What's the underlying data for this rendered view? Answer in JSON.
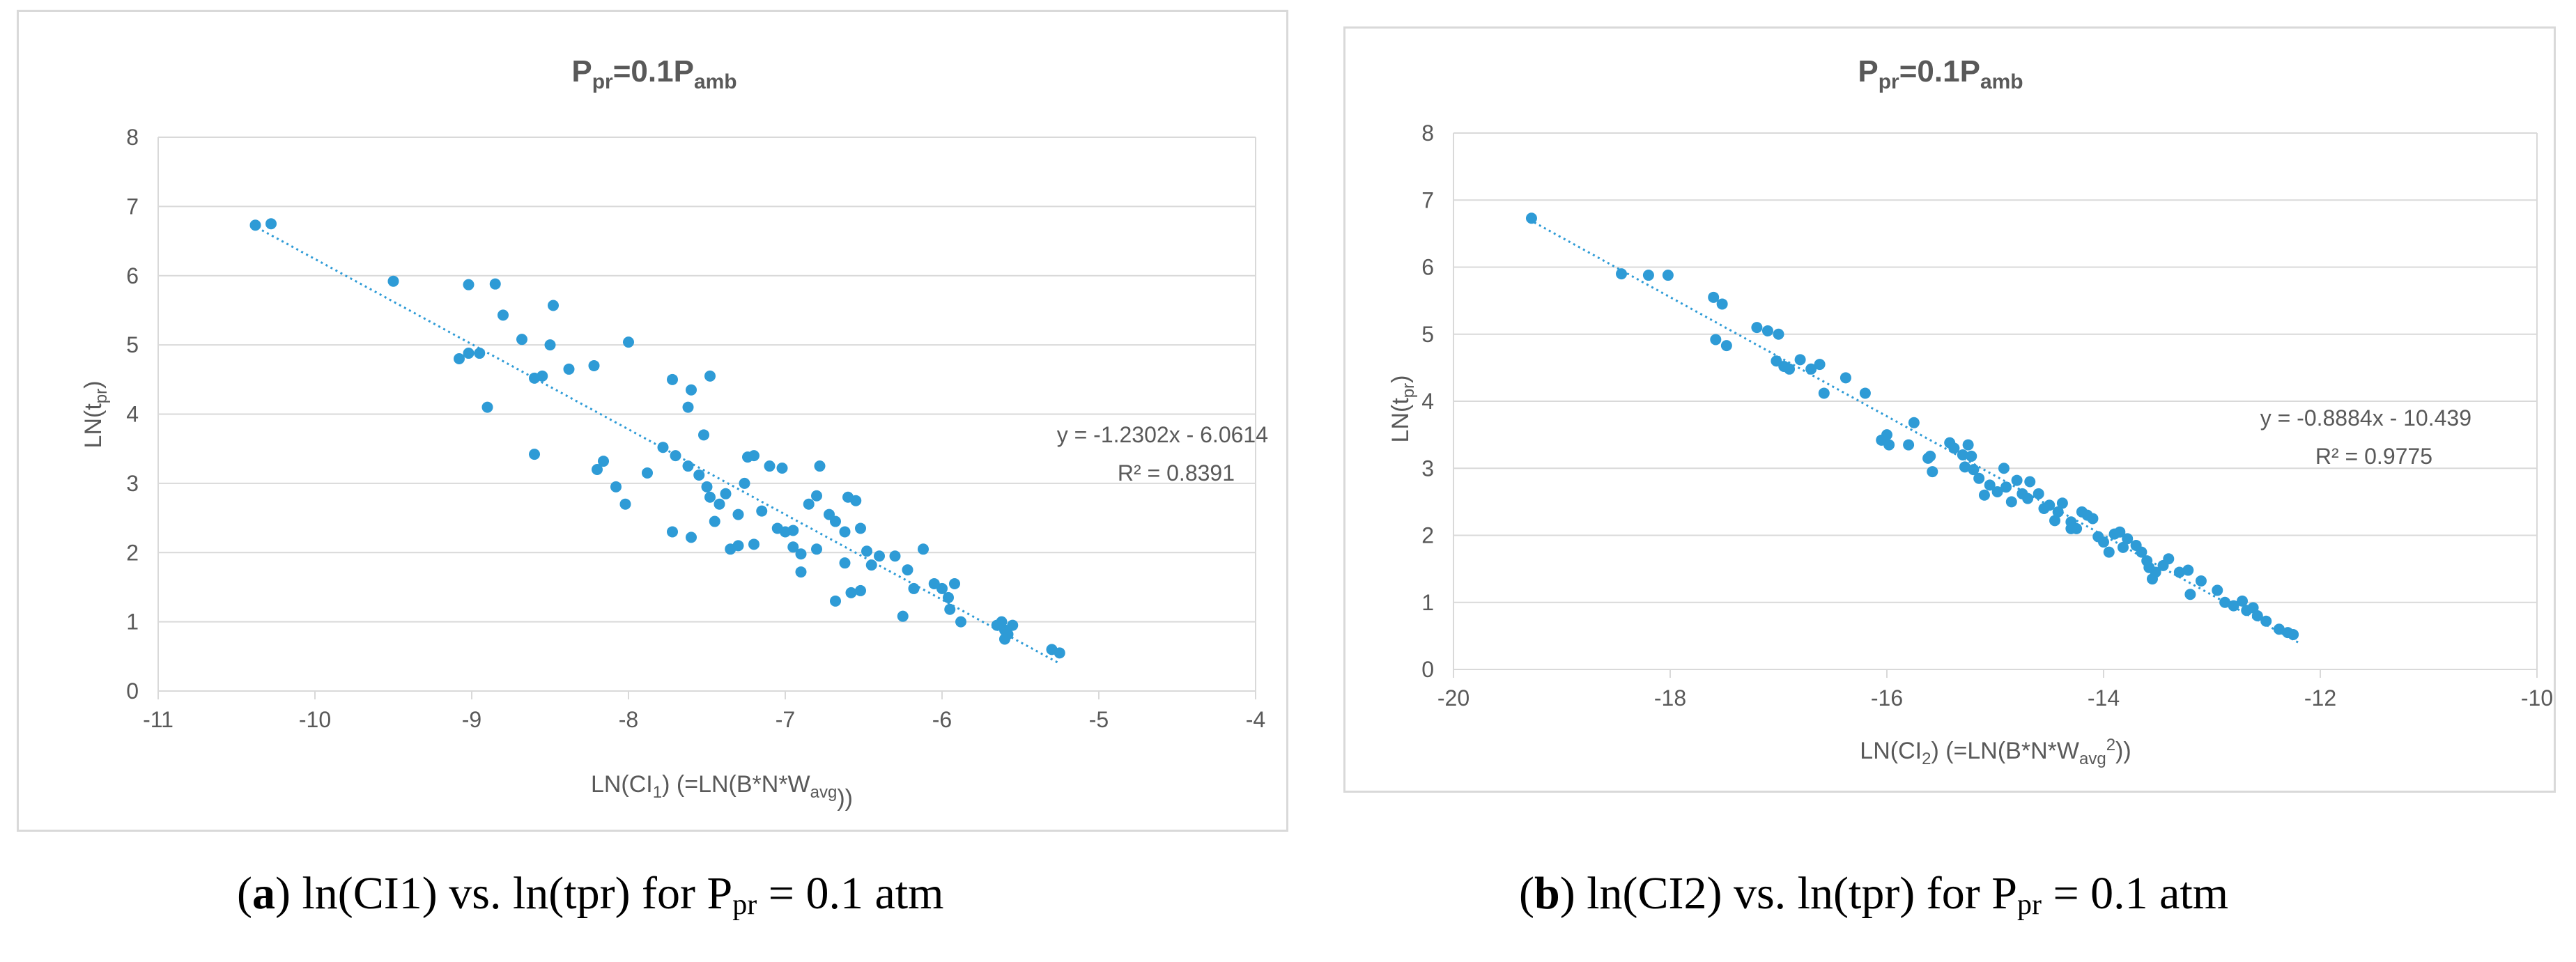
{
  "charts": [
    {
      "title_main": "P",
      "title_sub1": "pr",
      "title_mid": "=0.1P",
      "title_sub2": "amb",
      "ylabel_main": "LN(t",
      "ylabel_sub": "pr",
      "ylabel_end": ")",
      "xlabel_main": "LN(CI",
      "xlabel_sub1": "1",
      "xlabel_mid": ") (=LN(B*N*W",
      "xlabel_sub2": "avg",
      "xlabel_sup": "",
      "xlabel_end": "))",
      "equation": "y = -1.2302x - 6.0614",
      "r2": "R² = 0.8391",
      "caption_letter": "a",
      "caption_text": "ln(CI1) vs. ln(tpr) for P",
      "caption_sub": "pr",
      "caption_end": " = 0.1 atm"
    },
    {
      "title_main": "P",
      "title_sub1": "pr",
      "title_mid": "=0.1P",
      "title_sub2": "amb",
      "ylabel_main": "LN(t",
      "ylabel_sub": "pr",
      "ylabel_end": ")",
      "xlabel_main": "LN(CI",
      "xlabel_sub1": "2",
      "xlabel_mid": ") (=LN(B*N*W",
      "xlabel_sub2": "avg",
      "xlabel_sup": "2",
      "xlabel_end": "))",
      "equation": "y = -0.8884x - 10.439",
      "r2": "R² = 0.9775",
      "caption_letter": "b",
      "caption_text": "ln(CI2) vs. ln(tpr) for P",
      "caption_sub": "pr",
      "caption_end": " = 0.1 atm"
    }
  ],
  "colors": {
    "point": "#2e9bd6",
    "grid": "#d9d9d9",
    "text": "#595959"
  },
  "chart_data": [
    {
      "type": "scatter",
      "title": "Ppr=0.1Pamb",
      "xlabel": "LN(CI1) (=LN(B*N*Wavg))",
      "ylabel": "LN(tpr)",
      "xlim": [
        -11,
        -4
      ],
      "ylim": [
        0,
        8
      ],
      "xticks": [
        -11,
        -10,
        -9,
        -8,
        -7,
        -6,
        -5,
        -4
      ],
      "yticks": [
        0,
        1,
        2,
        3,
        4,
        5,
        6,
        7,
        8
      ],
      "x_tick_labels": [
        "-11",
        "-10",
        "-9",
        "-8",
        "-7",
        "-6",
        "-5",
        "-4"
      ],
      "y_tick_labels": [
        "0",
        "1",
        "2",
        "3",
        "4",
        "5",
        "6",
        "7",
        "8"
      ],
      "trendline": {
        "slope": -1.2302,
        "intercept": -6.0614,
        "x_range": [
          -10.4,
          -5.25
        ],
        "equation": "y = -1.2302x - 6.0614",
        "r2": 0.8391
      },
      "points": [
        [
          -10.38,
          6.73
        ],
        [
          -10.28,
          6.75
        ],
        [
          -9.5,
          5.92
        ],
        [
          -9.02,
          5.87
        ],
        [
          -8.85,
          5.88
        ],
        [
          -9.08,
          4.8
        ],
        [
          -9.02,
          4.88
        ],
        [
          -8.95,
          4.88
        ],
        [
          -8.8,
          5.43
        ],
        [
          -8.68,
          5.08
        ],
        [
          -8.6,
          4.52
        ],
        [
          -8.55,
          4.55
        ],
        [
          -8.5,
          5.0
        ],
        [
          -8.48,
          5.57
        ],
        [
          -8.38,
          4.65
        ],
        [
          -8.22,
          4.7
        ],
        [
          -8.0,
          5.04
        ],
        [
          -8.9,
          4.1
        ],
        [
          -8.6,
          3.42
        ],
        [
          -7.72,
          4.5
        ],
        [
          -7.6,
          4.35
        ],
        [
          -7.62,
          4.1
        ],
        [
          -7.48,
          4.55
        ],
        [
          -7.52,
          3.7
        ],
        [
          -8.2,
          3.2
        ],
        [
          -8.16,
          3.32
        ],
        [
          -8.08,
          2.95
        ],
        [
          -7.88,
          3.15
        ],
        [
          -7.78,
          3.52
        ],
        [
          -7.7,
          3.4
        ],
        [
          -7.62,
          3.25
        ],
        [
          -7.55,
          3.12
        ],
        [
          -7.5,
          2.95
        ],
        [
          -7.48,
          2.8
        ],
        [
          -7.42,
          2.7
        ],
        [
          -7.38,
          2.85
        ],
        [
          -7.3,
          2.55
        ],
        [
          -7.26,
          3.0
        ],
        [
          -7.24,
          3.38
        ],
        [
          -7.2,
          3.4
        ],
        [
          -7.1,
          3.25
        ],
        [
          -7.02,
          3.22
        ],
        [
          -7.15,
          2.6
        ],
        [
          -7.05,
          2.35
        ],
        [
          -7.0,
          2.3
        ],
        [
          -6.95,
          2.08
        ],
        [
          -6.9,
          1.98
        ],
        [
          -6.85,
          2.7
        ],
        [
          -6.8,
          2.82
        ],
        [
          -6.78,
          3.25
        ],
        [
          -6.72,
          2.55
        ],
        [
          -6.68,
          2.45
        ],
        [
          -6.62,
          2.3
        ],
        [
          -6.6,
          2.8
        ],
        [
          -6.55,
          2.75
        ],
        [
          -6.52,
          2.35
        ],
        [
          -6.48,
          2.02
        ],
        [
          -6.45,
          1.82
        ],
        [
          -6.4,
          1.95
        ],
        [
          -6.62,
          1.85
        ],
        [
          -6.58,
          1.42
        ],
        [
          -6.52,
          1.45
        ],
        [
          -6.68,
          1.3
        ],
        [
          -6.3,
          1.95
        ],
        [
          -6.22,
          1.75
        ],
        [
          -6.18,
          1.48
        ],
        [
          -6.12,
          2.05
        ],
        [
          -6.05,
          1.55
        ],
        [
          -6.0,
          1.48
        ],
        [
          -5.96,
          1.35
        ],
        [
          -5.95,
          1.18
        ],
        [
          -5.92,
          1.55
        ],
        [
          -5.88,
          1.0
        ],
        [
          -6.25,
          1.08
        ],
        [
          -6.9,
          1.72
        ],
        [
          -7.2,
          2.12
        ],
        [
          -7.3,
          2.1
        ],
        [
          -7.6,
          2.22
        ],
        [
          -7.72,
          2.3
        ],
        [
          -8.02,
          2.7
        ],
        [
          -5.65,
          0.95
        ],
        [
          -5.62,
          1.0
        ],
        [
          -5.6,
          0.88
        ],
        [
          -5.58,
          0.82
        ],
        [
          -5.6,
          0.75
        ],
        [
          -5.55,
          0.95
        ],
        [
          -5.3,
          0.6
        ],
        [
          -5.25,
          0.55
        ],
        [
          -6.8,
          2.05
        ],
        [
          -6.95,
          2.32
        ],
        [
          -7.45,
          2.45
        ],
        [
          -7.35,
          2.05
        ]
      ]
    },
    {
      "type": "scatter",
      "title": "Ppr=0.1Pamb",
      "xlabel": "LN(CI2) (=LN(B*N*Wavg2))",
      "ylabel": "LN(tpr)",
      "xlim": [
        -20,
        -10
      ],
      "ylim": [
        0,
        8
      ],
      "xticks": [
        -20,
        -18,
        -16,
        -14,
        -12,
        -10
      ],
      "yticks": [
        0,
        1,
        2,
        3,
        4,
        5,
        6,
        7,
        8
      ],
      "x_tick_labels": [
        "-20",
        "-18",
        "-16",
        "-14",
        "-12",
        "-10"
      ],
      "y_tick_labels": [
        "0",
        "1",
        "2",
        "3",
        "4",
        "5",
        "6",
        "7",
        "8"
      ],
      "trendline": {
        "slope": -0.8884,
        "intercept": -10.439,
        "x_range": [
          -19.3,
          -12.2
        ],
        "equation": "y = -0.8884x - 10.439",
        "r2": 0.9775
      },
      "points": [
        [
          -19.28,
          6.73
        ],
        [
          -18.45,
          5.9
        ],
        [
          -18.2,
          5.88
        ],
        [
          -18.02,
          5.88
        ],
        [
          -17.6,
          5.55
        ],
        [
          -17.52,
          5.45
        ],
        [
          -17.58,
          4.92
        ],
        [
          -17.48,
          4.83
        ],
        [
          -17.2,
          5.1
        ],
        [
          -17.1,
          5.05
        ],
        [
          -17.0,
          5.0
        ],
        [
          -17.02,
          4.6
        ],
        [
          -16.95,
          4.52
        ],
        [
          -16.9,
          4.48
        ],
        [
          -16.8,
          4.62
        ],
        [
          -16.7,
          4.48
        ],
        [
          -16.62,
          4.55
        ],
        [
          -16.58,
          4.12
        ],
        [
          -16.38,
          4.35
        ],
        [
          -16.2,
          4.12
        ],
        [
          -16.05,
          3.42
        ],
        [
          -16.0,
          3.5
        ],
        [
          -15.98,
          3.35
        ],
        [
          -15.8,
          3.35
        ],
        [
          -15.75,
          3.68
        ],
        [
          -15.62,
          3.15
        ],
        [
          -15.58,
          2.95
        ],
        [
          -15.42,
          3.38
        ],
        [
          -15.38,
          3.3
        ],
        [
          -15.3,
          3.2
        ],
        [
          -15.28,
          3.02
        ],
        [
          -15.25,
          3.35
        ],
        [
          -15.22,
          3.18
        ],
        [
          -15.2,
          2.98
        ],
        [
          -15.15,
          2.85
        ],
        [
          -15.05,
          2.75
        ],
        [
          -14.98,
          2.65
        ],
        [
          -14.92,
          3.0
        ],
        [
          -14.85,
          2.5
        ],
        [
          -14.8,
          2.82
        ],
        [
          -14.75,
          2.62
        ],
        [
          -14.7,
          2.55
        ],
        [
          -14.68,
          2.8
        ],
        [
          -14.6,
          2.62
        ],
        [
          -14.55,
          2.4
        ],
        [
          -14.5,
          2.45
        ],
        [
          -14.45,
          2.22
        ],
        [
          -14.42,
          2.35
        ],
        [
          -14.38,
          2.48
        ],
        [
          -14.3,
          2.2
        ],
        [
          -14.25,
          2.1
        ],
        [
          -14.2,
          2.35
        ],
        [
          -14.15,
          2.3
        ],
        [
          -14.1,
          2.25
        ],
        [
          -14.05,
          1.98
        ],
        [
          -14.0,
          1.9
        ],
        [
          -13.95,
          1.75
        ],
        [
          -13.9,
          2.02
        ],
        [
          -13.85,
          2.05
        ],
        [
          -13.82,
          1.82
        ],
        [
          -13.78,
          1.95
        ],
        [
          -13.7,
          1.85
        ],
        [
          -13.65,
          1.75
        ],
        [
          -13.58,
          1.52
        ],
        [
          -13.55,
          1.35
        ],
        [
          -13.52,
          1.45
        ],
        [
          -13.45,
          1.55
        ],
        [
          -13.4,
          1.65
        ],
        [
          -13.3,
          1.45
        ],
        [
          -13.22,
          1.48
        ],
        [
          -13.2,
          1.12
        ],
        [
          -13.1,
          1.32
        ],
        [
          -12.95,
          1.18
        ],
        [
          -12.88,
          1.0
        ],
        [
          -12.8,
          0.95
        ],
        [
          -12.72,
          1.02
        ],
        [
          -12.68,
          0.88
        ],
        [
          -12.62,
          0.92
        ],
        [
          -12.58,
          0.8
        ],
        [
          -12.5,
          0.72
        ],
        [
          -12.38,
          0.6
        ],
        [
          -12.3,
          0.55
        ],
        [
          -12.25,
          0.52
        ],
        [
          -15.6,
          3.18
        ],
        [
          -14.9,
          2.72
        ],
        [
          -14.3,
          2.1
        ],
        [
          -13.6,
          1.62
        ],
        [
          -15.1,
          2.6
        ]
      ]
    }
  ]
}
